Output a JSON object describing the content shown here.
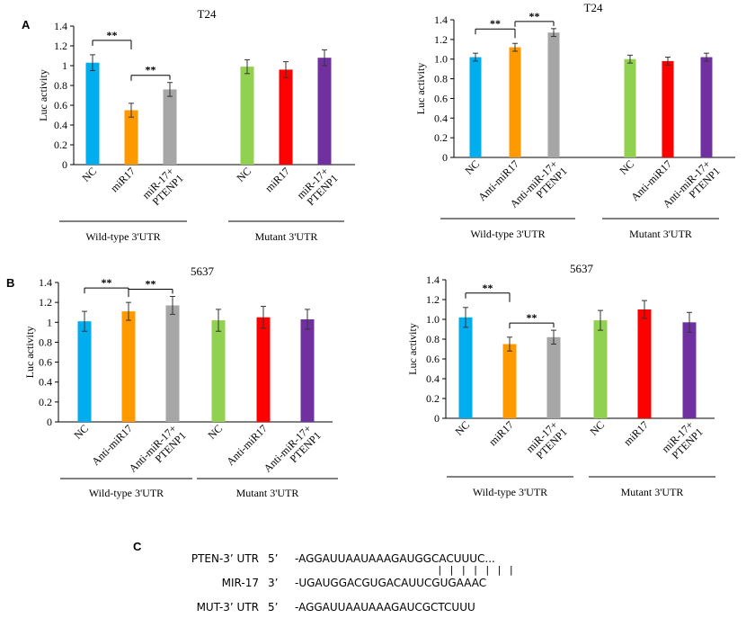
{
  "panels": {
    "A": "A",
    "B": "B",
    "C": "C"
  },
  "chart_data": [
    {
      "id": "A-left",
      "type": "bar",
      "title": "T24",
      "ylabel": "Luc activity",
      "ylim": [
        0,
        1.4
      ],
      "yticks": [
        "0",
        "0.2",
        "0.4",
        "0.6",
        "0.8",
        "1",
        "1.2",
        "1.4"
      ],
      "categories": [
        "NC",
        "miR17",
        "miR-17+\nPTENP1",
        "NC",
        "miR17",
        "miR-17+\nPTENP1"
      ],
      "values": [
        1.03,
        0.55,
        0.76,
        0.99,
        0.96,
        1.08
      ],
      "errors": [
        0.08,
        0.07,
        0.07,
        0.07,
        0.08,
        0.08
      ],
      "colors": [
        "#00aeef",
        "#ff9900",
        "#a6a6a6",
        "#92d050",
        "#ff0000",
        "#7030a0"
      ],
      "groups": [
        {
          "label": "Wild-type 3'UTR",
          "from": 0,
          "to": 2
        },
        {
          "label": "Mutant 3'UTR",
          "from": 3,
          "to": 5
        }
      ],
      "significance": [
        {
          "a": 0,
          "b": 1,
          "label": "**"
        },
        {
          "a": 1,
          "b": 2,
          "label": "**"
        }
      ],
      "grid": false
    },
    {
      "id": "A-right",
      "type": "bar",
      "title": "T24",
      "ylabel": "Luc activity",
      "ylim": [
        0,
        1.4
      ],
      "yticks": [
        "0",
        "0.2",
        "0.4",
        "0.6",
        "0.8",
        "1.0",
        "1.2",
        "1.4"
      ],
      "categories": [
        "NC",
        "Anti-miR17",
        "Anti-miR-17+\nPTENP1",
        "NC",
        "Anti-miR17",
        "Anti-miR-17+\nPTENP1"
      ],
      "values": [
        1.02,
        1.12,
        1.27,
        1.0,
        0.98,
        1.02
      ],
      "errors": [
        0.04,
        0.04,
        0.04,
        0.04,
        0.04,
        0.04
      ],
      "colors": [
        "#00aeef",
        "#ff9900",
        "#a6a6a6",
        "#92d050",
        "#ff0000",
        "#7030a0"
      ],
      "groups": [
        {
          "label": "Wild-type 3'UTR",
          "from": 0,
          "to": 2
        },
        {
          "label": "Mutant 3'UTR",
          "from": 3,
          "to": 5
        }
      ],
      "significance": [
        {
          "a": 0,
          "b": 1,
          "label": "**"
        },
        {
          "a": 1,
          "b": 2,
          "label": "**"
        }
      ],
      "grid": false
    },
    {
      "id": "B-left",
      "type": "bar",
      "title": "5637",
      "ylabel": "Luc activity",
      "ylim": [
        0,
        1.4
      ],
      "yticks": [
        "0",
        "0.2",
        "0.4",
        "0.6",
        "0.8",
        "1",
        "1.2",
        "1.4"
      ],
      "categories": [
        "NC",
        "Anti-miR17",
        "Anti-miR-17+\nPTENP1",
        "NC",
        "Anti-miR17",
        "Anti-miR-17+\nPTENP1"
      ],
      "values": [
        1.01,
        1.11,
        1.17,
        1.02,
        1.05,
        1.03
      ],
      "errors": [
        0.1,
        0.09,
        0.09,
        0.11,
        0.11,
        0.1
      ],
      "colors": [
        "#00aeef",
        "#ff9900",
        "#a6a6a6",
        "#92d050",
        "#ff0000",
        "#7030a0"
      ],
      "groups": [
        {
          "label": "Wild-type 3'UTR",
          "from": 0,
          "to": 2
        },
        {
          "label": "Mutant 3'UTR",
          "from": 3,
          "to": 5
        }
      ],
      "significance": [
        {
          "a": 0,
          "b": 1,
          "label": "**"
        },
        {
          "a": 1,
          "b": 2,
          "label": "**"
        }
      ],
      "grid": false
    },
    {
      "id": "B-right",
      "type": "bar",
      "title": "5637",
      "ylabel": "Luc activity",
      "ylim": [
        0,
        1.4
      ],
      "yticks": [
        "0",
        "0.2",
        "0.4",
        "0.6",
        "0.8",
        "1.0",
        "1.2",
        "1.4"
      ],
      "categories": [
        "NC",
        "miR17",
        "miR-17+\nPTENP1",
        "NC",
        "miR17",
        "miR-17+\nPTENP1"
      ],
      "values": [
        1.02,
        0.75,
        0.82,
        0.99,
        1.1,
        0.97
      ],
      "errors": [
        0.1,
        0.07,
        0.07,
        0.1,
        0.09,
        0.1
      ],
      "colors": [
        "#00aeef",
        "#ff9900",
        "#a6a6a6",
        "#92d050",
        "#ff0000",
        "#7030a0"
      ],
      "groups": [
        {
          "label": "Wild-type 3'UTR",
          "from": 0,
          "to": 2
        },
        {
          "label": "Mutant 3'UTR",
          "from": 3,
          "to": 5
        }
      ],
      "significance": [
        {
          "a": 0,
          "b": 1,
          "label": "**"
        },
        {
          "a": 1,
          "b": 2,
          "label": "**"
        }
      ],
      "grid": false
    }
  ],
  "sequences": {
    "rows": [
      {
        "label": "PTEN-3’ UTR",
        "dir": "5’",
        "seq": "-AGGAUUAAUAAAGAUGGCACUUUC..."
      },
      {
        "label": "MIR-17",
        "dir": "3’",
        "seq": "-UGAUGGACGUGACAUUCGUGAAAC"
      },
      {
        "label": "MUT-3’ UTR",
        "dir": "5’",
        "seq": "-AGGAUUAAUAAAGAUCGCTCUUU"
      }
    ],
    "pairing": "| | | | | | |"
  }
}
